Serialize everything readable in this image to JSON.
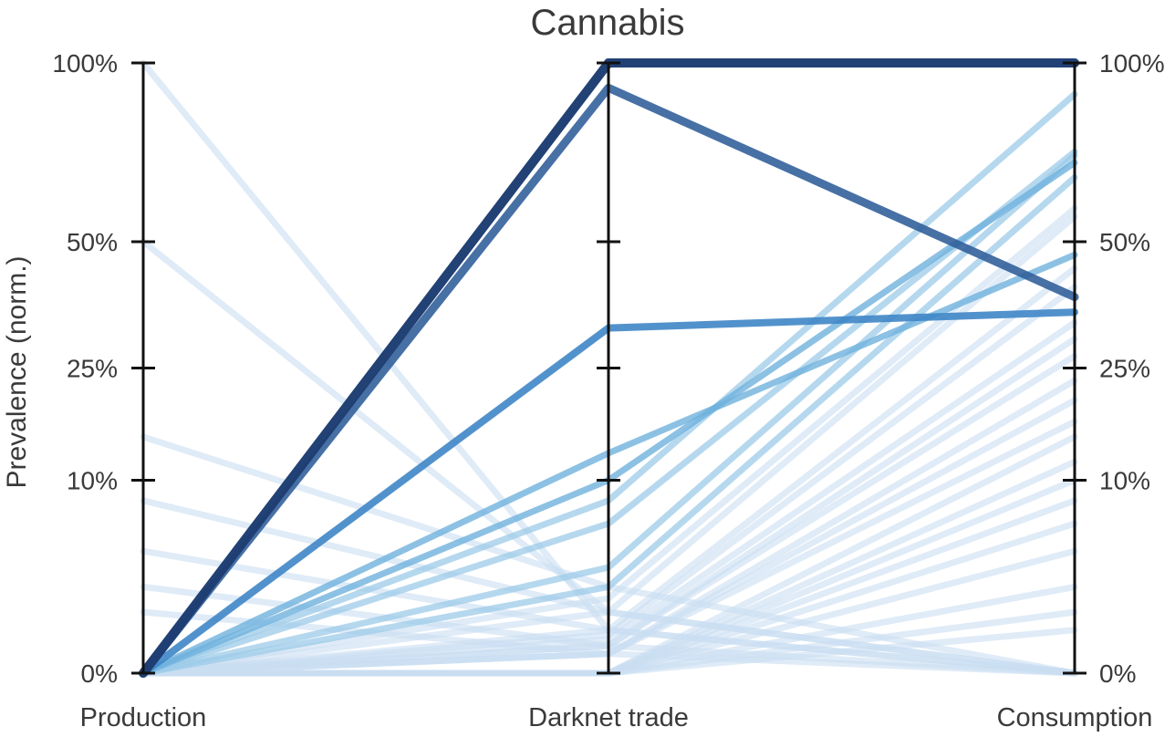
{
  "chart_data": {
    "type": "parallel_coordinates",
    "title": "Cannabis",
    "ylabel": "Prevalence (norm.)",
    "axes": [
      "Production",
      "Darknet trade",
      "Consumption"
    ],
    "tick_values": [
      0,
      10,
      25,
      50,
      100
    ],
    "left_tick_labels": [
      "0%",
      "10%",
      "25%",
      "50%",
      "100%"
    ],
    "right_tick_labels": [
      "0%",
      "10%",
      "25%",
      "50%",
      "100%"
    ],
    "scale_note": "square-root-like nonlinear scale",
    "colors": {
      "darkest": "#1f3f73",
      "dark": "#2e5c99",
      "mid": "#3f86c6",
      "light_mid": "#6fb1dd",
      "light": "#9ccbe8",
      "pale": "#c9ddf1"
    },
    "series": [
      {
        "values": [
          0,
          100,
          100
        ],
        "tone": "darkest"
      },
      {
        "values": [
          0,
          100,
          100
        ],
        "tone": "darkest"
      },
      {
        "values": [
          0,
          92,
          38
        ],
        "tone": "dark"
      },
      {
        "values": [
          0,
          32,
          35
        ],
        "tone": "mid"
      },
      {
        "values": [
          0,
          13,
          47
        ],
        "tone": "light_mid"
      },
      {
        "values": [
          0,
          10,
          70
        ],
        "tone": "light_mid"
      },
      {
        "values": [
          0,
          8,
          90
        ],
        "tone": "light"
      },
      {
        "values": [
          0,
          6,
          73
        ],
        "tone": "light"
      },
      {
        "values": [
          0,
          3,
          72
        ],
        "tone": "light"
      },
      {
        "values": [
          0,
          2,
          66
        ],
        "tone": "light"
      },
      {
        "values": [
          0,
          1.5,
          58
        ],
        "tone": "pale"
      },
      {
        "values": [
          0,
          1,
          56
        ],
        "tone": "pale"
      },
      {
        "values": [
          0,
          0.5,
          44
        ],
        "tone": "pale"
      },
      {
        "values": [
          0,
          0.4,
          40
        ],
        "tone": "pale"
      },
      {
        "values": [
          0,
          0.3,
          33
        ],
        "tone": "pale"
      },
      {
        "values": [
          0,
          0.2,
          30
        ],
        "tone": "pale"
      },
      {
        "values": [
          0,
          0.2,
          27
        ],
        "tone": "pale"
      },
      {
        "values": [
          0,
          0.1,
          23
        ],
        "tone": "pale"
      },
      {
        "values": [
          0,
          0.1,
          20
        ],
        "tone": "pale"
      },
      {
        "values": [
          0,
          0.1,
          17
        ],
        "tone": "pale"
      },
      {
        "values": [
          0,
          0,
          15
        ],
        "tone": "pale"
      },
      {
        "values": [
          0,
          0,
          12
        ],
        "tone": "pale"
      },
      {
        "values": [
          0,
          0,
          10
        ],
        "tone": "pale"
      },
      {
        "values": [
          0,
          0,
          8
        ],
        "tone": "pale"
      },
      {
        "values": [
          0,
          0,
          6
        ],
        "tone": "pale"
      },
      {
        "values": [
          0,
          0,
          4
        ],
        "tone": "pale"
      },
      {
        "values": [
          0,
          0,
          2
        ],
        "tone": "pale"
      },
      {
        "values": [
          0,
          0,
          1
        ],
        "tone": "pale"
      },
      {
        "values": [
          0,
          0,
          0.5
        ],
        "tone": "pale"
      },
      {
        "values": [
          100,
          0.5,
          0
        ],
        "tone": "pale"
      },
      {
        "values": [
          50,
          1,
          0
        ],
        "tone": "pale"
      },
      {
        "values": [
          15,
          2,
          0
        ],
        "tone": "pale"
      },
      {
        "values": [
          8,
          1,
          0
        ],
        "tone": "pale"
      },
      {
        "values": [
          4,
          0.5,
          0
        ],
        "tone": "pale"
      },
      {
        "values": [
          2,
          0.2,
          0
        ],
        "tone": "pale"
      },
      {
        "values": [
          1,
          0.1,
          0
        ],
        "tone": "pale"
      }
    ]
  }
}
